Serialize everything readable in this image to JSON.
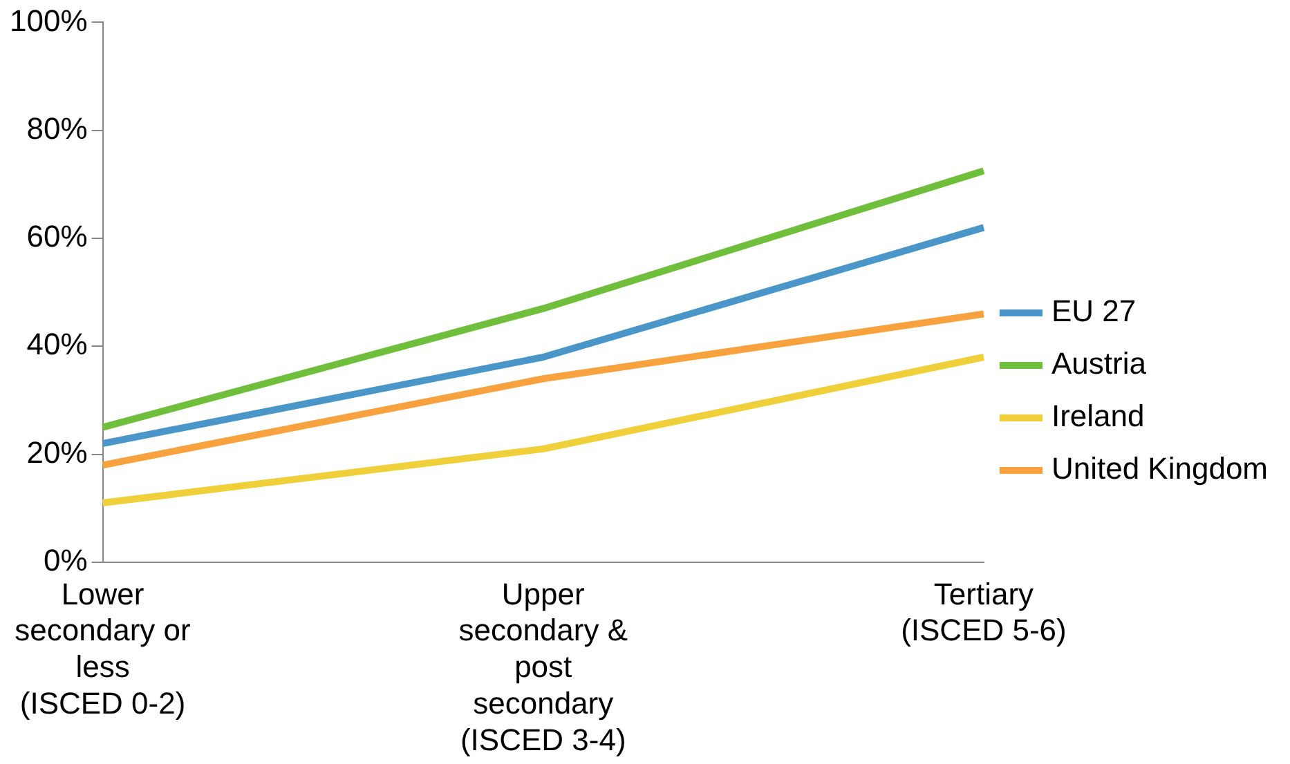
{
  "chart_data": {
    "type": "line",
    "categories": [
      "Lower secondary or less (ISCED 0-2)",
      "Upper secondary & post secondary (ISCED 3-4)",
      "Tertiary (ISCED 5-6)"
    ],
    "series": [
      {
        "name": "EU 27",
        "color": "#4a96c8",
        "values": [
          22,
          38,
          62
        ]
      },
      {
        "name": "Austria",
        "color": "#6fbe3c",
        "values": [
          25,
          47,
          72.5
        ]
      },
      {
        "name": "Ireland",
        "color": "#f0d03a",
        "values": [
          11,
          21,
          38
        ]
      },
      {
        "name": "United Kingdom",
        "color": "#f7a23e",
        "values": [
          18,
          34,
          46
        ]
      }
    ],
    "ylim": [
      0,
      100
    ],
    "yticks": [
      {
        "value": 0,
        "label": "0%"
      },
      {
        "value": 20,
        "label": "20%"
      },
      {
        "value": 40,
        "label": "40%"
      },
      {
        "value": 60,
        "label": "60%"
      },
      {
        "value": 80,
        "label": "80%"
      },
      {
        "value": 100,
        "label": "100%"
      }
    ],
    "grid": false,
    "legend": "right",
    "marker": "none",
    "line_style": "solid"
  }
}
